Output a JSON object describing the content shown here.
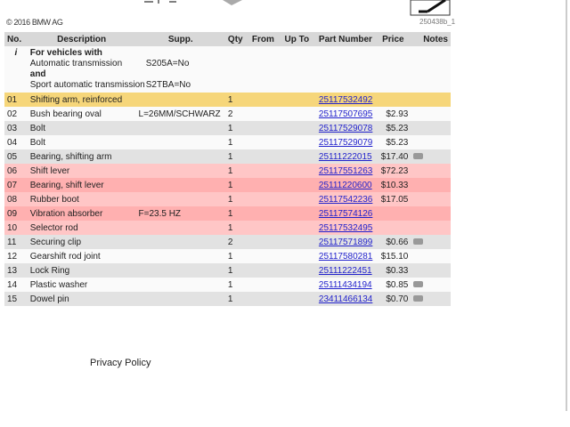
{
  "copyright": "© 2016 BMW AG",
  "image_id": "250438b_1",
  "columns": [
    "No.",
    "Description",
    "Supp.",
    "Qty",
    "From",
    "Up To",
    "Part Number",
    "Price",
    "Notes"
  ],
  "info": {
    "icon": "i",
    "title": "For vehicles with",
    "line1": "Automatic transmission",
    "supp1": "S205A=No",
    "and": "and",
    "line2": "Sport automatic transmission",
    "supp2": "S2TBA=No"
  },
  "rows": [
    {
      "no": "01",
      "desc": "Shifting arm, reinforced",
      "supp": "",
      "qty": "1",
      "part": "25117532492",
      "price": "",
      "camera": false,
      "style": "y"
    },
    {
      "no": "02",
      "desc": "Bush bearing oval",
      "supp": "L=26MM/SCHWARZ",
      "qty": "2",
      "part": "25117507695",
      "price": "$2.93",
      "camera": false,
      "style": "w"
    },
    {
      "no": "03",
      "desc": "Bolt",
      "supp": "",
      "qty": "1",
      "part": "25117529078",
      "price": "$5.23",
      "camera": false,
      "style": "g"
    },
    {
      "no": "04",
      "desc": "Bolt",
      "supp": "",
      "qty": "1",
      "part": "25117529079",
      "price": "$5.23",
      "camera": false,
      "style": "w"
    },
    {
      "no": "05",
      "desc": "Bearing, shifting arm",
      "supp": "",
      "qty": "1",
      "part": "25111222015",
      "price": "$17.40",
      "camera": true,
      "style": "g"
    },
    {
      "no": "06",
      "desc": "Shift lever",
      "supp": "",
      "qty": "1",
      "part": "25117551263",
      "price": "$72.23",
      "camera": false,
      "style": "p"
    },
    {
      "no": "07",
      "desc": "Bearing, shift lever",
      "supp": "",
      "qty": "1",
      "part": "25111220600",
      "price": "$10.33",
      "camera": false,
      "style": "pp"
    },
    {
      "no": "08",
      "desc": "Rubber boot",
      "supp": "",
      "qty": "1",
      "part": "25117542236",
      "price": "$17.05",
      "camera": false,
      "style": "p"
    },
    {
      "no": "09",
      "desc": "Vibration absorber",
      "supp": "F=23.5 HZ",
      "qty": "1",
      "part": "25117574126",
      "price": "",
      "camera": false,
      "style": "pp"
    },
    {
      "no": "10",
      "desc": "Selector rod",
      "supp": "",
      "qty": "1",
      "part": "25117532495",
      "price": "",
      "camera": false,
      "style": "p"
    },
    {
      "no": "11",
      "desc": "Securing clip",
      "supp": "",
      "qty": "2",
      "part": "25117571899",
      "price": "$0.66",
      "camera": true,
      "style": "g"
    },
    {
      "no": "12",
      "desc": "Gearshift rod joint",
      "supp": "",
      "qty": "1",
      "part": "25117580281",
      "price": "$15.10",
      "camera": false,
      "style": "w"
    },
    {
      "no": "13",
      "desc": "Lock Ring",
      "supp": "",
      "qty": "1",
      "part": "25111222451",
      "price": "$0.33",
      "camera": false,
      "style": "g"
    },
    {
      "no": "14",
      "desc": "Plastic washer",
      "supp": "",
      "qty": "1",
      "part": "25111434194",
      "price": "$0.85",
      "camera": true,
      "style": "w"
    },
    {
      "no": "15",
      "desc": "Dowel pin",
      "supp": "",
      "qty": "1",
      "part": "23411466134",
      "price": "$0.70",
      "camera": true,
      "style": "g"
    }
  ],
  "privacy": "Privacy Policy"
}
